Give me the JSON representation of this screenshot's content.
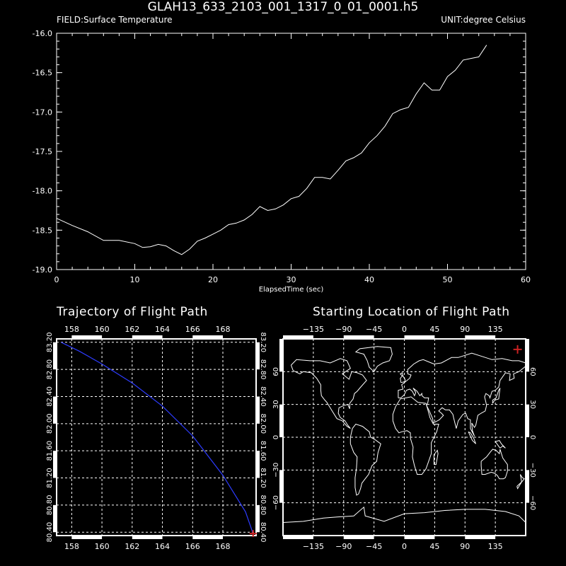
{
  "title": "GLAH13_633_2103_001_1317_0_01_0001.h5",
  "field_label": "FIELD:Surface Temperature",
  "unit_label": "UNIT:degree Celsius",
  "chart_data": [
    {
      "type": "line",
      "title": "",
      "xlabel": "ElapsedTime (sec)",
      "ylabel": "",
      "xlim": [
        0,
        60
      ],
      "ylim": [
        -19.0,
        -16.0
      ],
      "x_ticks": [
        0,
        10,
        20,
        30,
        40,
        50,
        60
      ],
      "x_tick_labels": [
        "0",
        "10",
        "20",
        "30",
        "40",
        "50",
        "60"
      ],
      "y_ticks": [
        -16.0,
        -16.5,
        -17.0,
        -17.5,
        -18.0,
        -18.5,
        -19.0
      ],
      "y_tick_labels": [
        "-16.0",
        "-16.5",
        "-17.0",
        "-17.5",
        "-18.0",
        "-18.5",
        "-19.0"
      ],
      "grid": false,
      "series": [
        {
          "color": "#ffffff",
          "x": [
            0,
            2,
            4,
            6,
            8,
            10,
            11,
            12,
            13,
            14,
            15,
            16,
            17,
            18,
            19,
            20,
            21,
            22,
            23,
            24,
            25,
            26,
            27,
            28,
            29,
            30,
            31,
            32,
            33,
            34,
            35,
            36,
            37,
            38,
            39,
            40,
            41,
            42,
            43,
            44,
            45,
            46,
            47,
            48,
            49,
            50,
            51,
            52,
            53,
            54,
            55
          ],
          "y": [
            -18.35,
            -18.44,
            -18.52,
            -18.63,
            -18.63,
            -18.67,
            -18.72,
            -18.71,
            -18.68,
            -18.7,
            -18.76,
            -18.81,
            -18.74,
            -18.64,
            -18.6,
            -18.55,
            -18.5,
            -18.43,
            -18.41,
            -18.37,
            -18.3,
            -18.2,
            -18.25,
            -18.23,
            -18.18,
            -18.1,
            -18.07,
            -17.97,
            -17.83,
            -17.83,
            -17.85,
            -17.74,
            -17.62,
            -17.58,
            -17.52,
            -17.39,
            -17.3,
            -17.18,
            -17.02,
            -16.97,
            -16.94,
            -16.77,
            -16.63,
            -16.72,
            -16.72,
            -16.55,
            -16.47,
            -16.34,
            -16.32,
            -16.3,
            -16.15
          ]
        }
      ]
    },
    {
      "type": "line",
      "title": "Trajectory of Flight Path",
      "xlim": [
        157,
        170.2
      ],
      "ylim": [
        80.35,
        83.25
      ],
      "x_ticks": [
        158,
        160,
        162,
        164,
        166,
        168
      ],
      "x_tick_labels": [
        "158",
        "160",
        "162",
        "164",
        "166",
        "168"
      ],
      "y_ticks": [
        80.4,
        80.8,
        81.2,
        81.6,
        82.0,
        82.4,
        82.8,
        83.2
      ],
      "y_tick_labels": [
        "80.40",
        "80.80",
        "81.20",
        "81.60",
        "82.00",
        "82.40",
        "82.80",
        "83.20"
      ],
      "grid": true,
      "series": [
        {
          "color": "#2d3cff",
          "x": [
            157.3,
            158.5,
            160.0,
            162.0,
            164.0,
            166.0,
            168.0,
            169.5,
            170.0
          ],
          "y": [
            83.2,
            83.07,
            82.88,
            82.6,
            82.26,
            81.82,
            81.24,
            80.7,
            80.38
          ]
        }
      ],
      "markers": [
        {
          "type": "cross",
          "color": "#cc2222",
          "x": 170.0,
          "y": 80.38
        }
      ]
    },
    {
      "type": "map",
      "title": "Starting Location of Flight Path",
      "xlim": [
        -180,
        180
      ],
      "ylim": [
        -90,
        90
      ],
      "x_ticks": [
        -135,
        -90,
        -45,
        0,
        45,
        90,
        135
      ],
      "x_tick_labels": [
        "−135",
        "−90",
        "−45",
        "0",
        "45",
        "90",
        "135"
      ],
      "y_ticks": [
        -60,
        -30,
        0,
        30,
        60
      ],
      "y_tick_labels": [
        "−60",
        "−30",
        "0",
        "30",
        "60"
      ],
      "grid": true,
      "markers": [
        {
          "type": "cross",
          "color": "#cc2222",
          "lon": 168,
          "lat": 80.4
        }
      ]
    }
  ]
}
